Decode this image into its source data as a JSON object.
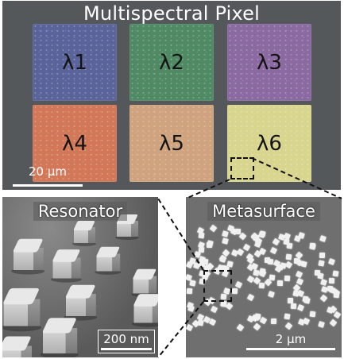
{
  "top": {
    "title": "Multispectral Pixel",
    "scalebar": "20 μm",
    "filters": [
      {
        "label": "λ1",
        "color": "#5a649a"
      },
      {
        "label": "λ2",
        "color": "#4f8a64"
      },
      {
        "label": "λ3",
        "color": "#8a6aa0"
      },
      {
        "label": "λ4",
        "color": "#d27758"
      },
      {
        "label": "λ5",
        "color": "#cfa37e"
      },
      {
        "label": "λ6",
        "color": "#d8d58f"
      }
    ]
  },
  "resonator": {
    "title": "Resonator",
    "scalebar": "200 nm"
  },
  "metasurface": {
    "title": "Metasurface",
    "scalebar": "2 μm"
  }
}
